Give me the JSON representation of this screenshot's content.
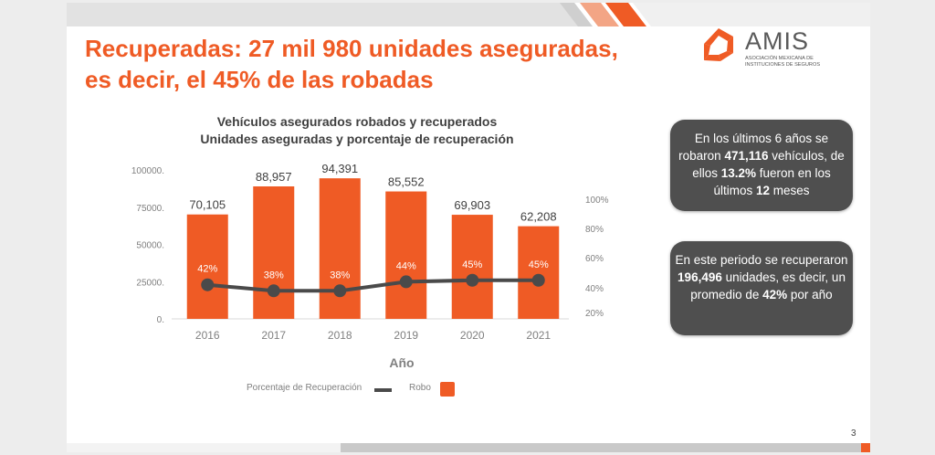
{
  "slide": {
    "title_line1": "Recuperadas: 27 mil 980 unidades aseguradas,",
    "title_line2": "es decir, el 45% de las robadas",
    "page_number": "3",
    "logo": {
      "name": "AMIS",
      "subtitle_line1": "Asociación Mexicana de",
      "subtitle_line2": "Instituciones de Seguros"
    }
  },
  "info_boxes": [
    {
      "pre": "En los últimos 6 años se robaron ",
      "bold1": "471,116",
      "mid": "  vehículos, de ellos ",
      "bold2": "13.2%",
      "mid2": " fueron en los últimos ",
      "bold3": "12",
      "post": " meses"
    },
    {
      "pre": "En este periodo se recuperaron ",
      "bold1": "196,496",
      "mid": " unidades, es decir, un promedio de ",
      "bold2": "42%",
      "post": " por año"
    }
  ],
  "colors": {
    "accent": "#EF5B25",
    "line": "#4a4a4a",
    "box_bg": "#4f4f4f",
    "axis_text": "#7f7f7f"
  },
  "chart_data": {
    "type": "bar",
    "title": "Vehículos asegurados robados y recuperados",
    "subtitle": "Unidades aseguradas y porcentaje de recuperación",
    "xlabel": "Año",
    "categories": [
      "2016",
      "2017",
      "2018",
      "2019",
      "2020",
      "2021"
    ],
    "series": [
      {
        "name": "Robo",
        "type": "bar",
        "axis": "left",
        "values": [
          70105,
          88957,
          94391,
          85552,
          69903,
          62208
        ],
        "labels": [
          "70,105",
          "88,957",
          "94,391",
          "85,552",
          "69,903",
          "62,208"
        ]
      },
      {
        "name": "Porcentaje de Recuperación",
        "type": "line",
        "axis": "right",
        "values": [
          42,
          38,
          38,
          44,
          45,
          45
        ],
        "labels": [
          "42%",
          "38%",
          "38%",
          "44%",
          "45%",
          "45%"
        ]
      }
    ],
    "y_left": {
      "ticks": [
        0,
        25000,
        50000,
        75000,
        100000
      ],
      "tick_labels": [
        "0.",
        "25000.",
        "50000.",
        "75000.",
        "100000."
      ]
    },
    "y_right": {
      "tick_labels": [
        "20%",
        "40%",
        "60%",
        "80%",
        "100%"
      ],
      "tick_values": [
        20,
        40,
        60,
        80,
        100
      ]
    },
    "legend": [
      {
        "label": "Porcentaje de Recuperación",
        "kind": "line"
      },
      {
        "label": "Robo",
        "kind": "box"
      }
    ],
    "legend_position": "bottom",
    "grid": false
  }
}
